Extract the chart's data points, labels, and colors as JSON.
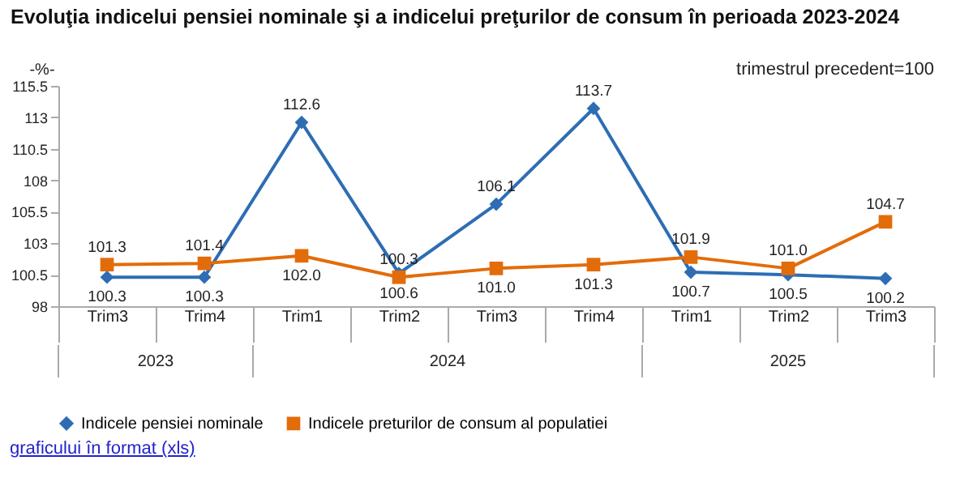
{
  "chart_data": {
    "type": "line",
    "title": "Evoluţia indicelui pensiei nominale şi a indicelui preţurilor de consum în perioada 2023-2024",
    "ylabel": "-%-",
    "categories": [
      "Trim3",
      "Trim4",
      "Trim1",
      "Trim2",
      "Trim3",
      "Trim4",
      "Trim1",
      "Trim2",
      "Trim3"
    ],
    "series": [
      {
        "name": "Indicele pensiei nominale",
        "color": "#2e6db4",
        "marker": "diamond",
        "values": [
          100.3,
          100.3,
          112.6,
          100.6,
          106.1,
          113.7,
          100.7,
          100.5,
          100.2
        ],
        "value_labels": [
          "100.3",
          "100.3",
          "112.6",
          "100.6",
          "106.1",
          "113.7",
          "100.7",
          "100.5",
          "100.2"
        ]
      },
      {
        "name": "Indicele preturilor de consum al populatiei",
        "color": "#e36c0a",
        "marker": "square",
        "values": [
          101.3,
          101.4,
          102.0,
          100.3,
          101.0,
          101.3,
          101.9,
          101.0,
          104.7
        ],
        "value_labels": [
          "101.3",
          "101.4",
          "102.0",
          "100.3",
          "101.0",
          "101.3",
          "101.9",
          "101.0",
          "104.7"
        ]
      }
    ],
    "ylim": [
      98,
      115.5
    ],
    "yticks": [
      98,
      100.5,
      103,
      105.5,
      108,
      110.5,
      113,
      115.5
    ],
    "grid": false,
    "legend": "bottom",
    "annotations": [
      "trimestrul precedent=100",
      "2023",
      "2024",
      "2025",
      "graficului în format (xls)"
    ]
  }
}
